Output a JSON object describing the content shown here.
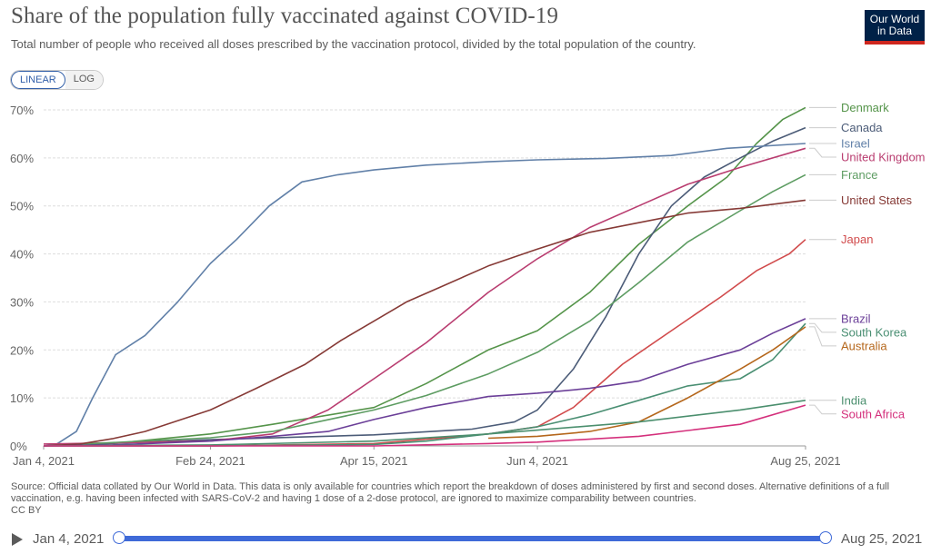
{
  "header": {
    "title": "Share of the population fully vaccinated against COVID-19",
    "subtitle": "Total number of people who received all doses prescribed by the vaccination protocol, divided by the total population of the country.",
    "logo_line1": "Our World",
    "logo_line2": "in Data"
  },
  "controls": {
    "linear_label": "LINEAR",
    "log_label": "LOG",
    "active": "LINEAR"
  },
  "footer": {
    "source": "Source: Official data collated by Our World in Data. This data is only available for countries which report the breakdown of doses administered by first and second doses. Alternative definitions of a full vaccination, e.g. having been infected with SARS-CoV-2 and having 1 dose of a 2-dose protocol, are ignored to maximize comparability between countries.",
    "license": "CC BY"
  },
  "timeline": {
    "start_label": "Jan 4, 2021",
    "end_label": "Aug 25, 2021"
  },
  "chart_data": {
    "type": "line",
    "title": "Share of the population fully vaccinated against COVID-19",
    "x_start": "2021-01-04",
    "x_end": "2021-08-25",
    "ylim": [
      0,
      70
    ],
    "y_ticks": [
      0,
      10,
      20,
      30,
      40,
      50,
      60,
      70
    ],
    "y_tick_labels": [
      "0%",
      "10%",
      "20%",
      "30%",
      "40%",
      "50%",
      "60%",
      "70%"
    ],
    "x_ticks": [
      "2021-01-04",
      "2021-02-24",
      "2021-04-15",
      "2021-06-04",
      "2021-08-25"
    ],
    "x_tick_labels": [
      "Jan 4, 2021",
      "Feb 24, 2021",
      "Apr 15, 2021",
      "Jun 4, 2021",
      "Aug 25, 2021"
    ],
    "grid": "horizontal dashed",
    "legend": "right-side line end labels",
    "series": [
      {
        "name": "Denmark",
        "color": "#55944a",
        "points": [
          [
            "2021-01-04",
            0
          ],
          [
            "2021-01-25",
            0.5
          ],
          [
            "2021-02-24",
            2.5
          ],
          [
            "2021-03-15",
            4.5
          ],
          [
            "2021-04-15",
            8
          ],
          [
            "2021-05-01",
            13
          ],
          [
            "2021-05-20",
            20
          ],
          [
            "2021-06-04",
            24
          ],
          [
            "2021-06-20",
            32
          ],
          [
            "2021-07-05",
            42
          ],
          [
            "2021-07-20",
            50
          ],
          [
            "2021-08-01",
            56
          ],
          [
            "2021-08-10",
            63
          ],
          [
            "2021-08-18",
            68
          ],
          [
            "2021-08-25",
            70.5
          ]
        ]
      },
      {
        "name": "Canada",
        "color": "#4c5c78",
        "points": [
          [
            "2021-01-04",
            0
          ],
          [
            "2021-02-24",
            1.3
          ],
          [
            "2021-04-15",
            2.3
          ],
          [
            "2021-05-15",
            3.5
          ],
          [
            "2021-05-28",
            5
          ],
          [
            "2021-06-04",
            7.5
          ],
          [
            "2021-06-15",
            16
          ],
          [
            "2021-06-25",
            27
          ],
          [
            "2021-07-05",
            40
          ],
          [
            "2021-07-15",
            50
          ],
          [
            "2021-07-25",
            56
          ],
          [
            "2021-08-05",
            60
          ],
          [
            "2021-08-15",
            63.5
          ],
          [
            "2021-08-25",
            66.3
          ]
        ]
      },
      {
        "name": "Israel",
        "color": "#6180a8",
        "points": [
          [
            "2021-01-04",
            0
          ],
          [
            "2021-01-08",
            0.4
          ],
          [
            "2021-01-14",
            3
          ],
          [
            "2021-01-19",
            10
          ],
          [
            "2021-01-26",
            19
          ],
          [
            "2021-02-04",
            23
          ],
          [
            "2021-02-14",
            30
          ],
          [
            "2021-02-24",
            38
          ],
          [
            "2021-03-04",
            43
          ],
          [
            "2021-03-14",
            50
          ],
          [
            "2021-03-24",
            55
          ],
          [
            "2021-04-04",
            56.5
          ],
          [
            "2021-04-15",
            57.5
          ],
          [
            "2021-05-01",
            58.5
          ],
          [
            "2021-05-20",
            59.2
          ],
          [
            "2021-06-04",
            59.6
          ],
          [
            "2021-06-25",
            59.9
          ],
          [
            "2021-07-15",
            60.5
          ],
          [
            "2021-08-01",
            62
          ],
          [
            "2021-08-25",
            63
          ]
        ]
      },
      {
        "name": "United Kingdom",
        "color": "#b93d70",
        "points": [
          [
            "2021-01-04",
            0.4
          ],
          [
            "2021-02-24",
            1
          ],
          [
            "2021-03-15",
            2.5
          ],
          [
            "2021-04-01",
            7.5
          ],
          [
            "2021-04-15",
            14
          ],
          [
            "2021-05-01",
            21.5
          ],
          [
            "2021-05-20",
            32
          ],
          [
            "2021-06-04",
            39
          ],
          [
            "2021-06-20",
            45.5
          ],
          [
            "2021-07-05",
            50
          ],
          [
            "2021-07-20",
            54.5
          ],
          [
            "2021-08-05",
            58
          ],
          [
            "2021-08-25",
            62
          ]
        ]
      },
      {
        "name": "France",
        "color": "#5d9c62",
        "points": [
          [
            "2021-01-04",
            0
          ],
          [
            "2021-02-24",
            1.7
          ],
          [
            "2021-03-15",
            3
          ],
          [
            "2021-04-15",
            7.5
          ],
          [
            "2021-05-01",
            10.5
          ],
          [
            "2021-05-20",
            15
          ],
          [
            "2021-06-04",
            19.5
          ],
          [
            "2021-06-20",
            26
          ],
          [
            "2021-07-05",
            34
          ],
          [
            "2021-07-20",
            42.5
          ],
          [
            "2021-08-05",
            49
          ],
          [
            "2021-08-15",
            53
          ],
          [
            "2021-08-25",
            56.5
          ]
        ]
      },
      {
        "name": "United States",
        "color": "#863a36",
        "points": [
          [
            "2021-01-04",
            0
          ],
          [
            "2021-01-15",
            0.4
          ],
          [
            "2021-01-25",
            1.5
          ],
          [
            "2021-02-04",
            3
          ],
          [
            "2021-02-24",
            7.5
          ],
          [
            "2021-03-10",
            12
          ],
          [
            "2021-03-25",
            17
          ],
          [
            "2021-04-05",
            22
          ],
          [
            "2021-04-15",
            26
          ],
          [
            "2021-04-25",
            30
          ],
          [
            "2021-05-05",
            33
          ],
          [
            "2021-05-20",
            37.5
          ],
          [
            "2021-06-04",
            41
          ],
          [
            "2021-06-20",
            44.5
          ],
          [
            "2021-07-05",
            46.5
          ],
          [
            "2021-07-20",
            48.5
          ],
          [
            "2021-08-05",
            49.5
          ],
          [
            "2021-08-25",
            51.2
          ]
        ]
      },
      {
        "name": "Japan",
        "color": "#d14b4c",
        "points": [
          [
            "2021-01-04",
            0
          ],
          [
            "2021-02-24",
            0
          ],
          [
            "2021-04-15",
            0.5
          ],
          [
            "2021-05-20",
            2.5
          ],
          [
            "2021-06-04",
            4
          ],
          [
            "2021-06-15",
            8
          ],
          [
            "2021-06-30",
            17
          ],
          [
            "2021-07-15",
            24
          ],
          [
            "2021-07-30",
            31
          ],
          [
            "2021-08-10",
            36.5
          ],
          [
            "2021-08-20",
            40
          ],
          [
            "2021-08-25",
            43
          ]
        ]
      },
      {
        "name": "Brazil",
        "color": "#6b3f98",
        "points": [
          [
            "2021-01-04",
            0
          ],
          [
            "2021-01-25",
            0.2
          ],
          [
            "2021-02-24",
            1
          ],
          [
            "2021-03-15",
            2
          ],
          [
            "2021-04-01",
            3
          ],
          [
            "2021-04-15",
            5.5
          ],
          [
            "2021-05-01",
            8
          ],
          [
            "2021-05-20",
            10.3
          ],
          [
            "2021-06-04",
            11
          ],
          [
            "2021-06-20",
            12
          ],
          [
            "2021-07-05",
            13.5
          ],
          [
            "2021-07-20",
            17
          ],
          [
            "2021-08-05",
            20
          ],
          [
            "2021-08-15",
            23.5
          ],
          [
            "2021-08-25",
            26.5
          ]
        ]
      },
      {
        "name": "South Korea",
        "color": "#4a8f73",
        "points": [
          [
            "2021-01-04",
            0
          ],
          [
            "2021-02-24",
            0
          ],
          [
            "2021-04-15",
            0.3
          ],
          [
            "2021-05-01",
            1
          ],
          [
            "2021-05-20",
            2.5
          ],
          [
            "2021-06-04",
            4
          ],
          [
            "2021-06-20",
            6.5
          ],
          [
            "2021-07-05",
            9.5
          ],
          [
            "2021-07-20",
            12.5
          ],
          [
            "2021-08-05",
            14
          ],
          [
            "2021-08-15",
            18
          ],
          [
            "2021-08-25",
            25.5
          ]
        ]
      },
      {
        "name": "Australia",
        "color": "#b5671c",
        "points": [
          [
            "2021-05-20",
            1.6
          ],
          [
            "2021-06-04",
            2
          ],
          [
            "2021-06-20",
            3
          ],
          [
            "2021-07-05",
            5
          ],
          [
            "2021-07-20",
            10
          ],
          [
            "2021-08-05",
            16
          ],
          [
            "2021-08-15",
            20
          ],
          [
            "2021-08-25",
            24.8
          ]
        ]
      },
      {
        "name": "India",
        "color": "#4b8f6e",
        "points": [
          [
            "2021-01-04",
            0
          ],
          [
            "2021-02-24",
            0.2
          ],
          [
            "2021-04-15",
            1
          ],
          [
            "2021-05-20",
            2.5
          ],
          [
            "2021-06-04",
            3.3
          ],
          [
            "2021-07-05",
            5
          ],
          [
            "2021-08-05",
            7.5
          ],
          [
            "2021-08-25",
            9.5
          ]
        ]
      },
      {
        "name": "South Africa",
        "color": "#d4307c",
        "points": [
          [
            "2021-01-04",
            0
          ],
          [
            "2021-04-15",
            0
          ],
          [
            "2021-05-20",
            0.5
          ],
          [
            "2021-06-04",
            0.8
          ],
          [
            "2021-07-05",
            2
          ],
          [
            "2021-08-05",
            4.5
          ],
          [
            "2021-08-25",
            8.5
          ]
        ]
      }
    ]
  }
}
